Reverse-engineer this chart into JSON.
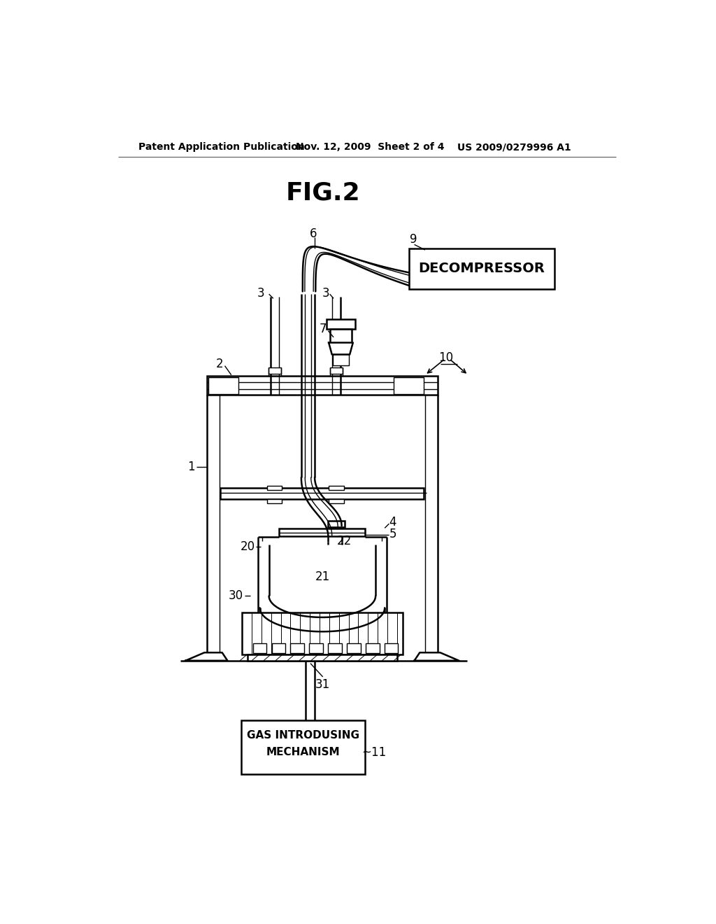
{
  "title": "FIG.2",
  "header_left": "Patent Application Publication",
  "header_mid": "Nov. 12, 2009  Sheet 2 of 4",
  "header_right": "US 2009/0279996 A1",
  "bg_color": "#ffffff",
  "lc": "#000000",
  "lw_main": 1.8,
  "lw_thin": 1.0,
  "lw_thick": 2.5,
  "decompressor_label": "DECOMPRESSOR",
  "gas_label_line1": "GAS INTRODUSING",
  "gas_label_line2": "MECHANISM",
  "fig_label": "FIG.2"
}
